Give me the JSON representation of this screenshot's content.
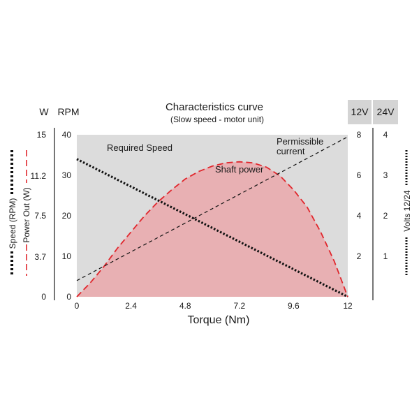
{
  "chart_data": {
    "type": "line",
    "title": "Characteristics curve",
    "subtitle": "(Slow speed - motor unit)",
    "xlabel": "Torque (Nm)",
    "xlim": [
      0,
      12
    ],
    "x_ticks": [
      "0",
      "2.4",
      "4.8",
      "7.2",
      "9.6",
      "12"
    ],
    "axes": {
      "watts": {
        "unit": "W",
        "ticks": [
          "0",
          "3.7",
          "7.5",
          "11.2",
          "15"
        ],
        "range": [
          0,
          15
        ]
      },
      "rpm": {
        "unit": "RPM",
        "ticks": [
          "0",
          "10",
          "20",
          "30",
          "40"
        ],
        "range": [
          0,
          40
        ]
      },
      "volts12": {
        "unit": "12V",
        "ticks": [
          "2",
          "4",
          "6",
          "8"
        ],
        "range": [
          0,
          8
        ]
      },
      "volts24": {
        "unit": "24V",
        "ticks": [
          "1",
          "2",
          "3",
          "4"
        ],
        "range": [
          0,
          4
        ]
      }
    },
    "left_legend": [
      "Speed (RPM)",
      "Power Out (W)"
    ],
    "right_legend": [
      "Volts 12/24"
    ],
    "series": [
      {
        "name": "Required Speed",
        "axis": "rpm",
        "style": "dotted",
        "color": "#111111",
        "x": [
          0,
          12
        ],
        "y": [
          34,
          0
        ]
      },
      {
        "name": "Permissible current",
        "axis": "volts12",
        "style": "dashed",
        "color": "#111111",
        "x": [
          0,
          12
        ],
        "y": [
          0.8,
          7.9
        ]
      },
      {
        "name": "Shaft power",
        "axis": "watts",
        "style": "dashed-filled",
        "color": "#e0262c",
        "fill": "#e8b0b3",
        "x": [
          0,
          0.6,
          1.2,
          1.8,
          2.4,
          3.0,
          3.6,
          4.2,
          4.8,
          5.4,
          6.0,
          6.6,
          7.2,
          7.8,
          8.4,
          9.0,
          9.6,
          10.2,
          10.8,
          11.4,
          12
        ],
        "y": [
          0,
          1.3,
          2.8,
          4.5,
          6.0,
          7.5,
          8.8,
          9.9,
          10.9,
          11.6,
          12.1,
          12.4,
          12.5,
          12.4,
          12.0,
          11.2,
          9.9,
          8.3,
          6.0,
          3.3,
          0
        ]
      }
    ],
    "series_labels": {
      "required_speed": "Required Speed",
      "permissible_current": [
        "Permissible",
        "current"
      ],
      "shaft_power": "Shaft power"
    },
    "grid": false,
    "plot_background": "#dcdcdc"
  }
}
